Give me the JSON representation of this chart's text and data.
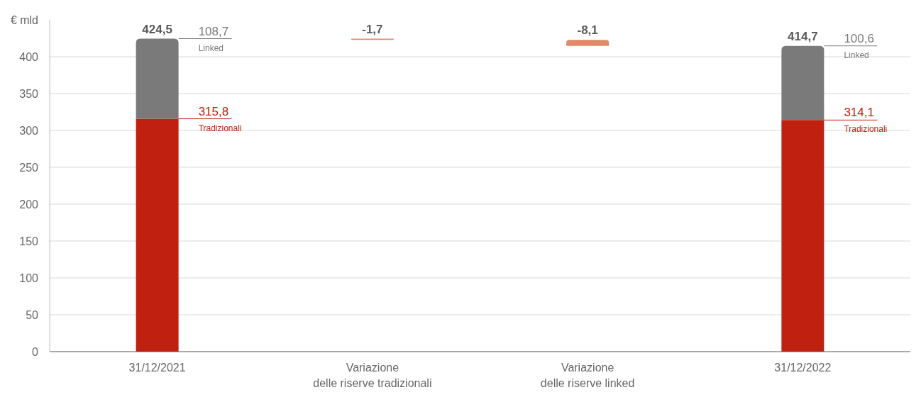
{
  "chart_data": {
    "type": "bar",
    "stacked": true,
    "ylabel": "€ mld",
    "categories": [
      "31/12/2021",
      "Variazione\ndelle riserve tradizionali",
      "Variazione\ndelle riserve linked",
      "31/12/2022"
    ],
    "series": [
      {
        "name": "Tradizionali",
        "color": "#c0200f",
        "values": [
          315.8,
          null,
          null,
          314.1
        ],
        "value_labels": [
          "315,8",
          null,
          null,
          "314,1"
        ]
      },
      {
        "name": "Linked",
        "color": "#7a7a7a",
        "values": [
          108.7,
          null,
          null,
          100.6
        ],
        "value_labels": [
          "108,7",
          null,
          null,
          "100,6"
        ]
      },
      {
        "color": "#e08a6a",
        "values": [
          null,
          -1.7,
          -8.1,
          null
        ],
        "base": [
          null,
          424.5,
          422.8,
          null
        ],
        "value_labels": [
          null,
          "-1,7",
          "-8,1",
          null
        ]
      }
    ],
    "totals": [
      "424,5",
      null,
      null,
      "414,7"
    ],
    "ylim": [
      0,
      450
    ],
    "yticks": [
      0,
      50,
      100,
      150,
      200,
      250,
      300,
      350,
      400
    ],
    "grid": "y"
  }
}
